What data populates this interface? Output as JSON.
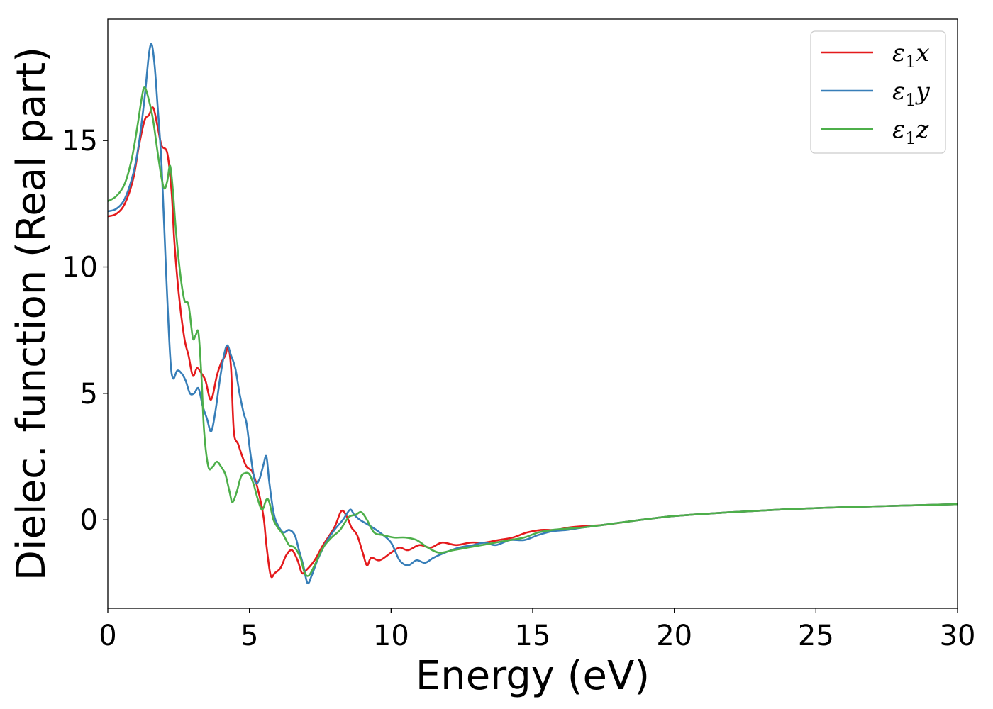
{
  "chart_data": {
    "type": "line",
    "xlabel": "Energy (eV)",
    "ylabel": "Dielec. function (Real part)",
    "xlim": [
      0,
      30
    ],
    "ylim": [
      -3.5,
      19.8
    ],
    "xticks": [
      0,
      5,
      10,
      15,
      20,
      25,
      30
    ],
    "yticks": [
      0,
      5,
      10,
      15
    ],
    "grid": false,
    "legend_position": "top-right",
    "series": [
      {
        "name": "ε₁x",
        "legend": {
          "base": "ε",
          "sub": "1",
          "var": "x"
        },
        "color": "#e41a1c",
        "points": [
          [
            0,
            12
          ],
          [
            0.3,
            12.1
          ],
          [
            0.6,
            12.5
          ],
          [
            0.9,
            13.5
          ],
          [
            1.1,
            14.8
          ],
          [
            1.3,
            15.8
          ],
          [
            1.45,
            16.0
          ],
          [
            1.6,
            16.3
          ],
          [
            1.75,
            15.6
          ],
          [
            1.9,
            14.8
          ],
          [
            2.1,
            14.5
          ],
          [
            2.25,
            13.0
          ],
          [
            2.35,
            11.0
          ],
          [
            2.5,
            9.0
          ],
          [
            2.7,
            7.2
          ],
          [
            2.85,
            6.5
          ],
          [
            3.0,
            5.7
          ],
          [
            3.15,
            6.0
          ],
          [
            3.3,
            5.8
          ],
          [
            3.45,
            5.5
          ],
          [
            3.6,
            4.8
          ],
          [
            3.7,
            4.9
          ],
          [
            3.85,
            5.7
          ],
          [
            4.0,
            6.2
          ],
          [
            4.15,
            6.5
          ],
          [
            4.25,
            6.85
          ],
          [
            4.35,
            6.0
          ],
          [
            4.45,
            3.5
          ],
          [
            4.6,
            3.0
          ],
          [
            4.75,
            2.5
          ],
          [
            4.9,
            2.1
          ],
          [
            5.1,
            1.9
          ],
          [
            5.3,
            1.2
          ],
          [
            5.5,
            0.1
          ],
          [
            5.6,
            -1.0
          ],
          [
            5.75,
            -2.2
          ],
          [
            5.9,
            -2.1
          ],
          [
            6.1,
            -1.9
          ],
          [
            6.3,
            -1.4
          ],
          [
            6.5,
            -1.2
          ],
          [
            6.7,
            -1.6
          ],
          [
            6.85,
            -2.1
          ],
          [
            7.0,
            -2.0
          ],
          [
            7.3,
            -1.6
          ],
          [
            7.6,
            -1.0
          ],
          [
            8.0,
            -0.3
          ],
          [
            8.25,
            0.35
          ],
          [
            8.45,
            0.1
          ],
          [
            8.6,
            -0.3
          ],
          [
            8.8,
            -0.6
          ],
          [
            9.0,
            -1.3
          ],
          [
            9.15,
            -1.8
          ],
          [
            9.3,
            -1.5
          ],
          [
            9.6,
            -1.6
          ],
          [
            10.0,
            -1.3
          ],
          [
            10.3,
            -1.1
          ],
          [
            10.6,
            -1.2
          ],
          [
            11.0,
            -1.0
          ],
          [
            11.4,
            -1.1
          ],
          [
            11.8,
            -0.9
          ],
          [
            12.3,
            -1.0
          ],
          [
            12.8,
            -0.9
          ],
          [
            13.3,
            -0.9
          ],
          [
            13.8,
            -0.8
          ],
          [
            14.3,
            -0.7
          ],
          [
            14.8,
            -0.5
          ],
          [
            15.3,
            -0.4
          ],
          [
            15.8,
            -0.4
          ],
          [
            16.3,
            -0.3
          ],
          [
            16.8,
            -0.25
          ],
          [
            17.5,
            -0.2
          ],
          [
            18.5,
            -0.05
          ],
          [
            20,
            0.15
          ],
          [
            22,
            0.3
          ],
          [
            24,
            0.42
          ],
          [
            26,
            0.5
          ],
          [
            28,
            0.56
          ],
          [
            30,
            0.62
          ]
        ]
      },
      {
        "name": "ε₁y",
        "legend": {
          "base": "ε",
          "sub": "1",
          "var": "y"
        },
        "color": "#377eb8",
        "points": [
          [
            0,
            12.2
          ],
          [
            0.3,
            12.3
          ],
          [
            0.6,
            12.7
          ],
          [
            0.9,
            13.7
          ],
          [
            1.1,
            14.9
          ],
          [
            1.3,
            16.7
          ],
          [
            1.45,
            18.4
          ],
          [
            1.55,
            18.8
          ],
          [
            1.65,
            18.0
          ],
          [
            1.75,
            16.5
          ],
          [
            1.9,
            14.0
          ],
          [
            2.05,
            10.0
          ],
          [
            2.2,
            6.5
          ],
          [
            2.3,
            5.6
          ],
          [
            2.45,
            5.9
          ],
          [
            2.6,
            5.8
          ],
          [
            2.75,
            5.5
          ],
          [
            2.9,
            5.0
          ],
          [
            3.05,
            5.0
          ],
          [
            3.2,
            5.2
          ],
          [
            3.35,
            4.5
          ],
          [
            3.5,
            4.0
          ],
          [
            3.65,
            3.5
          ],
          [
            3.8,
            4.3
          ],
          [
            3.95,
            5.5
          ],
          [
            4.1,
            6.5
          ],
          [
            4.22,
            6.9
          ],
          [
            4.35,
            6.5
          ],
          [
            4.5,
            6.0
          ],
          [
            4.65,
            5.0
          ],
          [
            4.8,
            4.2
          ],
          [
            4.9,
            3.8
          ],
          [
            5.05,
            2.5
          ],
          [
            5.2,
            1.5
          ],
          [
            5.35,
            1.6
          ],
          [
            5.5,
            2.2
          ],
          [
            5.6,
            2.5
          ],
          [
            5.7,
            1.5
          ],
          [
            5.85,
            0.3
          ],
          [
            6.0,
            -0.2
          ],
          [
            6.2,
            -0.5
          ],
          [
            6.4,
            -0.4
          ],
          [
            6.6,
            -0.6
          ],
          [
            6.75,
            -1.2
          ],
          [
            6.9,
            -1.8
          ],
          [
            7.05,
            -2.5
          ],
          [
            7.2,
            -2.2
          ],
          [
            7.4,
            -1.6
          ],
          [
            7.7,
            -0.9
          ],
          [
            8.0,
            -0.4
          ],
          [
            8.3,
            0.0
          ],
          [
            8.55,
            0.4
          ],
          [
            8.7,
            0.2
          ],
          [
            8.9,
            0.0
          ],
          [
            9.2,
            -0.2
          ],
          [
            9.6,
            -0.5
          ],
          [
            10.0,
            -0.9
          ],
          [
            10.3,
            -1.6
          ],
          [
            10.6,
            -1.8
          ],
          [
            10.9,
            -1.6
          ],
          [
            11.2,
            -1.7
          ],
          [
            11.5,
            -1.5
          ],
          [
            11.9,
            -1.3
          ],
          [
            12.4,
            -1.1
          ],
          [
            12.9,
            -1.0
          ],
          [
            13.3,
            -0.9
          ],
          [
            13.7,
            -1.0
          ],
          [
            14.2,
            -0.8
          ],
          [
            14.7,
            -0.8
          ],
          [
            15.2,
            -0.6
          ],
          [
            15.7,
            -0.45
          ],
          [
            16.2,
            -0.4
          ],
          [
            16.8,
            -0.3
          ],
          [
            17.5,
            -0.2
          ],
          [
            18.5,
            -0.05
          ],
          [
            20,
            0.15
          ],
          [
            22,
            0.3
          ],
          [
            24,
            0.42
          ],
          [
            26,
            0.5
          ],
          [
            28,
            0.56
          ],
          [
            30,
            0.62
          ]
        ]
      },
      {
        "name": "ε₁z",
        "legend": {
          "base": "ε",
          "sub": "1",
          "var": "z"
        },
        "color": "#4daf4a",
        "points": [
          [
            0,
            12.6
          ],
          [
            0.3,
            12.8
          ],
          [
            0.6,
            13.3
          ],
          [
            0.85,
            14.3
          ],
          [
            1.05,
            15.6
          ],
          [
            1.2,
            16.7
          ],
          [
            1.3,
            17.1
          ],
          [
            1.45,
            16.6
          ],
          [
            1.6,
            15.8
          ],
          [
            1.75,
            14.6
          ],
          [
            1.9,
            13.5
          ],
          [
            2.0,
            13.1
          ],
          [
            2.1,
            13.4
          ],
          [
            2.2,
            14.0
          ],
          [
            2.3,
            13.0
          ],
          [
            2.4,
            11.5
          ],
          [
            2.55,
            9.8
          ],
          [
            2.7,
            8.7
          ],
          [
            2.85,
            8.5
          ],
          [
            3.0,
            7.2
          ],
          [
            3.1,
            7.3
          ],
          [
            3.2,
            7.4
          ],
          [
            3.3,
            5.8
          ],
          [
            3.4,
            3.5
          ],
          [
            3.55,
            2.1
          ],
          [
            3.7,
            2.1
          ],
          [
            3.85,
            2.3
          ],
          [
            4.0,
            2.1
          ],
          [
            4.15,
            1.8
          ],
          [
            4.3,
            1.1
          ],
          [
            4.4,
            0.7
          ],
          [
            4.55,
            1.1
          ],
          [
            4.7,
            1.7
          ],
          [
            4.85,
            1.85
          ],
          [
            5.0,
            1.8
          ],
          [
            5.15,
            1.4
          ],
          [
            5.3,
            0.8
          ],
          [
            5.45,
            0.4
          ],
          [
            5.6,
            0.8
          ],
          [
            5.7,
            0.7
          ],
          [
            5.85,
            0.0
          ],
          [
            6.0,
            -0.3
          ],
          [
            6.2,
            -0.6
          ],
          [
            6.4,
            -1.0
          ],
          [
            6.6,
            -1.1
          ],
          [
            6.8,
            -1.5
          ],
          [
            6.95,
            -2.1
          ],
          [
            7.1,
            -2.2
          ],
          [
            7.3,
            -1.8
          ],
          [
            7.6,
            -1.1
          ],
          [
            7.9,
            -0.7
          ],
          [
            8.2,
            -0.4
          ],
          [
            8.5,
            0.1
          ],
          [
            8.75,
            0.2
          ],
          [
            8.95,
            0.3
          ],
          [
            9.15,
            0.0
          ],
          [
            9.4,
            -0.5
          ],
          [
            9.7,
            -0.6
          ],
          [
            10.1,
            -0.7
          ],
          [
            10.5,
            -0.7
          ],
          [
            10.9,
            -0.8
          ],
          [
            11.3,
            -1.1
          ],
          [
            11.7,
            -1.3
          ],
          [
            12.2,
            -1.2
          ],
          [
            12.7,
            -1.1
          ],
          [
            13.2,
            -1.0
          ],
          [
            13.7,
            -0.9
          ],
          [
            14.2,
            -0.8
          ],
          [
            14.7,
            -0.7
          ],
          [
            15.2,
            -0.5
          ],
          [
            15.7,
            -0.4
          ],
          [
            16.2,
            -0.35
          ],
          [
            16.8,
            -0.3
          ],
          [
            17.5,
            -0.2
          ],
          [
            18.5,
            -0.05
          ],
          [
            20,
            0.15
          ],
          [
            22,
            0.3
          ],
          [
            24,
            0.42
          ],
          [
            26,
            0.5
          ],
          [
            28,
            0.56
          ],
          [
            30,
            0.62
          ]
        ]
      }
    ]
  }
}
